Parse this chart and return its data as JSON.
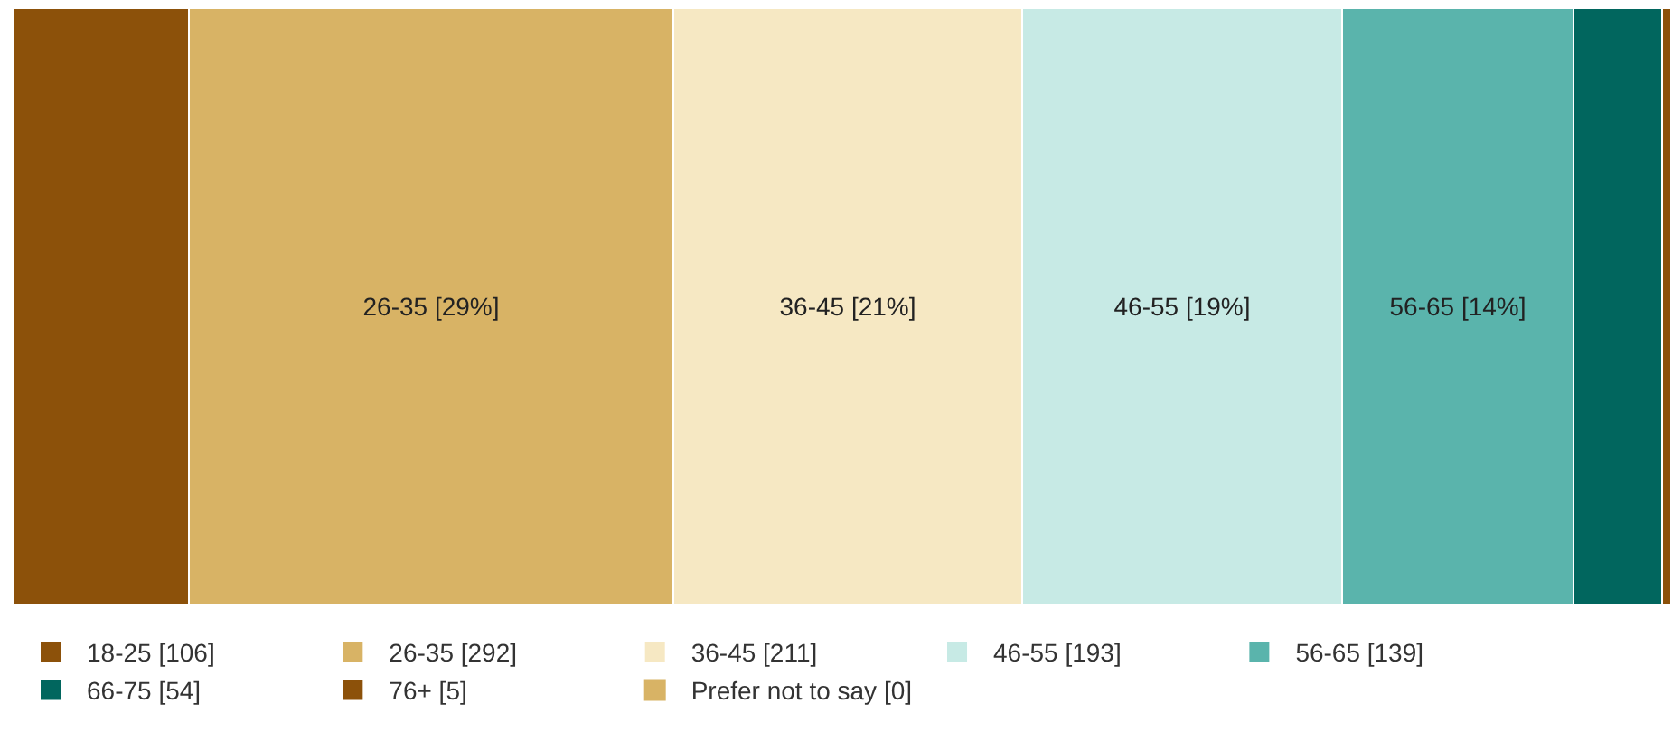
{
  "chart_data": {
    "type": "bar",
    "orientation": "horizontal",
    "stacked": true,
    "categories": [
      null
    ],
    "tick_labels": false,
    "legend": "bottom",
    "series": [
      {
        "name": "18-25 [106]",
        "color": "#8c510a",
        "values": [
          10.6
        ],
        "value_labels": [
          null
        ]
      },
      {
        "name": "26-35 [292]",
        "color": "#d8b365",
        "values": [
          29.2
        ],
        "value_labels": [
          "26-35 [29%]"
        ]
      },
      {
        "name": "36-45 [211]",
        "color": "#f6e8c3",
        "values": [
          21.1
        ],
        "value_labels": [
          "36-45 [21%]"
        ]
      },
      {
        "name": "46-55 [193]",
        "color": "#c7eae5",
        "values": [
          19.3
        ],
        "value_labels": [
          "46-55 [19%]"
        ]
      },
      {
        "name": "56-65 [139]",
        "color": "#5ab4ac",
        "values": [
          13.9
        ],
        "value_labels": [
          "56-65 [14%]"
        ]
      },
      {
        "name": "66-75 [54]",
        "color": "#01665e",
        "values": [
          5.4
        ],
        "value_labels": [
          null
        ]
      },
      {
        "name": "76+ [5]",
        "color": "#8c510a",
        "values": [
          0.5
        ],
        "value_labels": [
          null
        ]
      },
      {
        "name": "Prefer not to say [0]",
        "color": "#d8b365",
        "values": [
          0
        ],
        "value_labels": [
          null
        ]
      }
    ]
  }
}
